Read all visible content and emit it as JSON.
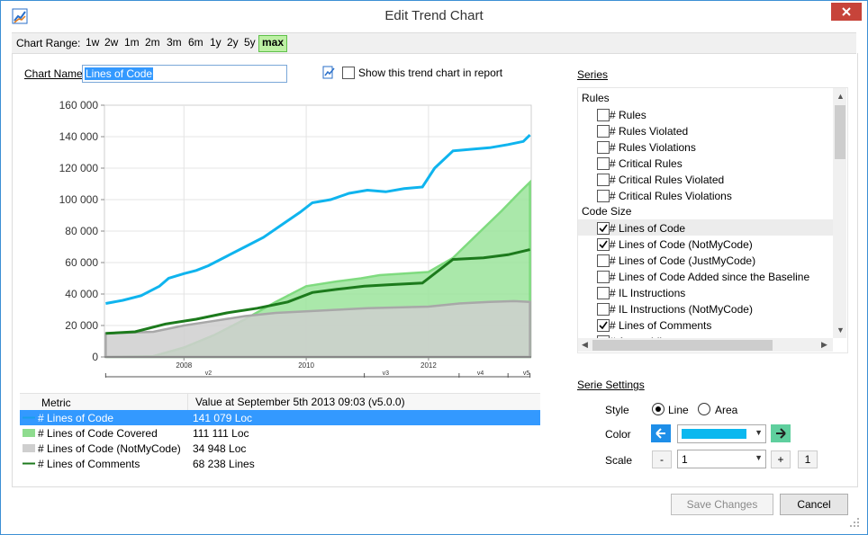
{
  "window": {
    "title": "Edit Trend Chart",
    "close_icon": "close-icon"
  },
  "range": {
    "label": "Chart Range:",
    "buttons": [
      "1w",
      "2w",
      "1m",
      "2m",
      "3m",
      "6m",
      "1y",
      "2y",
      "5y",
      "max"
    ],
    "active": "max"
  },
  "chart_name": {
    "label": "Chart Name",
    "value": "Lines of Code"
  },
  "report": {
    "label": "Show this trend chart in report",
    "checked": false
  },
  "chart_data": {
    "type": "line",
    "y_ticks": [
      "160 000",
      "140 000",
      "120 000",
      "100 000",
      "80 000",
      "60 000",
      "40 000",
      "20 000",
      "0"
    ],
    "ylim": [
      0,
      160000
    ],
    "xlim": [
      2006.7,
      2013.68
    ],
    "x_ticks": [
      "2008",
      "2010",
      "2012"
    ],
    "x_tick_values": [
      2008,
      2010,
      2012
    ],
    "versions": [
      {
        "label": "v2",
        "x": 2008.4
      },
      {
        "label": "v3",
        "x": 2011.3
      },
      {
        "label": "v4",
        "x": 2012.85
      },
      {
        "label": "v5",
        "x": 2013.6
      }
    ],
    "version_bounds": [
      2006.72,
      2010.95,
      2012.5,
      2013.3,
      2013.66
    ],
    "grid": true,
    "series": [
      {
        "name": "# Lines of Code",
        "kind": "line",
        "color": "#0fb4ee",
        "x": [
          2006.72,
          2007.0,
          2007.3,
          2007.6,
          2007.75,
          2008.0,
          2008.2,
          2008.4,
          2008.7,
          2009.0,
          2009.3,
          2009.6,
          2009.9,
          2010.1,
          2010.4,
          2010.7,
          2011.0,
          2011.3,
          2011.6,
          2011.9,
          2012.1,
          2012.4,
          2012.7,
          2013.0,
          2013.3,
          2013.55,
          2013.66
        ],
        "y": [
          34000,
          36000,
          39000,
          45000,
          50000,
          53000,
          55000,
          58000,
          64000,
          70000,
          76000,
          84000,
          92000,
          98000,
          100000,
          104000,
          106000,
          105000,
          107000,
          108000,
          120000,
          131000,
          132000,
          133000,
          135000,
          137000,
          141079
        ]
      },
      {
        "name": "# Lines of Code Covered",
        "kind": "area",
        "color": "#7fdb7f",
        "fill": "#9be49b",
        "x": [
          2006.72,
          2007.5,
          2008.0,
          2008.5,
          2009.0,
          2009.5,
          2010.0,
          2010.5,
          2010.9,
          2011.2,
          2011.6,
          2012.0,
          2012.4,
          2012.8,
          2013.2,
          2013.5,
          2013.66
        ],
        "y": [
          0,
          500,
          6000,
          14000,
          24000,
          35000,
          45000,
          48000,
          50000,
          52000,
          53000,
          54000,
          63000,
          78000,
          93000,
          105000,
          111111
        ]
      },
      {
        "name": "# Lines of Code (NotMyCode)",
        "kind": "area",
        "color": "#a8a8a8",
        "fill": "#cfcfcf",
        "x": [
          2006.72,
          2007.5,
          2008.0,
          2008.5,
          2009.0,
          2009.5,
          2010.0,
          2010.5,
          2011.0,
          2011.5,
          2012.0,
          2012.5,
          2013.0,
          2013.4,
          2013.66
        ],
        "y": [
          15000,
          16000,
          20000,
          23000,
          26000,
          28000,
          29000,
          30000,
          31000,
          31500,
          32000,
          34000,
          35000,
          35500,
          34948
        ]
      },
      {
        "name": "# Lines of Comments",
        "kind": "line",
        "color": "#1c7a1c",
        "x": [
          2006.72,
          2007.2,
          2007.7,
          2008.2,
          2008.7,
          2009.2,
          2009.7,
          2010.1,
          2010.5,
          2010.95,
          2011.4,
          2011.9,
          2012.4,
          2012.9,
          2013.3,
          2013.66
        ],
        "y": [
          15000,
          16000,
          21000,
          24000,
          28000,
          31000,
          35000,
          41000,
          43000,
          45000,
          46000,
          47000,
          62000,
          63000,
          65000,
          68238
        ]
      }
    ]
  },
  "table": {
    "headers": [
      "Metric",
      "Value at September 5th 2013  09:03  (v5.0.0)"
    ],
    "rows": [
      {
        "metric": "# Lines of Code",
        "value": "141 079 Loc",
        "swatch": "#1a9fe8",
        "selected": true
      },
      {
        "metric": "# Lines of Code Covered",
        "value": "111 111 Loc",
        "swatch": "#8fdc8f",
        "selected": false
      },
      {
        "metric": "# Lines of Code (NotMyCode)",
        "value": "34 948 Loc",
        "swatch": "#cfcfcf",
        "selected": false
      },
      {
        "metric": "# Lines of Comments",
        "value": "68 238 Lines",
        "swatch": "#1c7a1c",
        "selected": false
      }
    ]
  },
  "series_panel": {
    "title": "Series",
    "groups": [
      {
        "name": "Rules",
        "items": [
          {
            "label": "# Rules",
            "checked": false
          },
          {
            "label": "# Rules Violated",
            "checked": false
          },
          {
            "label": "# Rules Violations",
            "checked": false
          },
          {
            "label": "# Critical Rules",
            "checked": false
          },
          {
            "label": "# Critical Rules Violated",
            "checked": false
          },
          {
            "label": "# Critical Rules Violations",
            "checked": false
          }
        ]
      },
      {
        "name": "Code Size",
        "items": [
          {
            "label": "# Lines of Code",
            "checked": true,
            "highlight": true
          },
          {
            "label": "# Lines of Code (NotMyCode)",
            "checked": true
          },
          {
            "label": "# Lines of Code (JustMyCode)",
            "checked": false
          },
          {
            "label": "# Lines of Code Added since the Baseline",
            "checked": false
          },
          {
            "label": "# IL Instructions",
            "checked": false
          },
          {
            "label": "# IL Instructions (NotMyCode)",
            "checked": false
          },
          {
            "label": "# Lines of Comments",
            "checked": true
          },
          {
            "label": "# Assemblies",
            "checked": false
          }
        ]
      }
    ]
  },
  "serie_settings": {
    "title": "Serie Settings",
    "style_label": "Style",
    "style_options": [
      "Line",
      "Area"
    ],
    "style_selected": "Line",
    "color_label": "Color",
    "color_value": "#0bb8ef",
    "scale_label": "Scale",
    "scale_value": "1",
    "scale_minus": "-",
    "scale_plus": "+",
    "scale_extra": "1"
  },
  "buttons": {
    "save": "Save Changes",
    "cancel": "Cancel"
  }
}
